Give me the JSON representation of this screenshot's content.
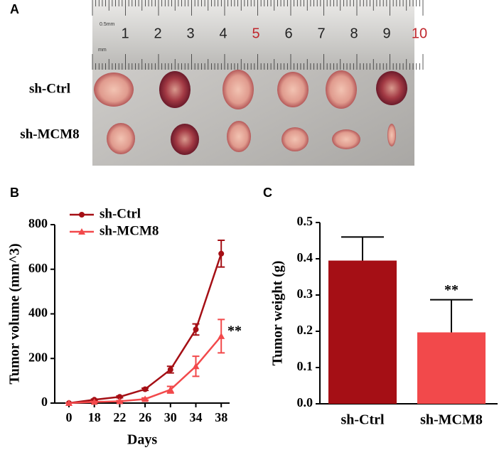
{
  "photo": {
    "label": "A",
    "rows": [
      "sh-Ctrl",
      "sh-MCM8"
    ],
    "ruler": [
      1,
      2,
      3,
      4,
      5,
      6,
      7,
      8,
      9,
      10
    ],
    "ruler_notes": [
      "0.5mm",
      "mm"
    ]
  },
  "chart_data": [
    {
      "type": "line",
      "panel": "B",
      "x_label": "Days",
      "y_label": "Tumor volume (mm^3)",
      "categories": [
        "0",
        "18",
        "22",
        "26",
        "30",
        "34",
        "38"
      ],
      "series": [
        {
          "name": "sh-Ctrl",
          "color": "#a50f15",
          "marker": "circle",
          "values": [
            0,
            15,
            28,
            62,
            150,
            330,
            670
          ],
          "errors": [
            0,
            3,
            4,
            5,
            15,
            25,
            60
          ]
        },
        {
          "name": "sh-MCM8",
          "color": "#f2494b",
          "marker": "triangle",
          "values": [
            0,
            5,
            8,
            18,
            60,
            165,
            300
          ],
          "errors": [
            0,
            2,
            3,
            5,
            15,
            45,
            75
          ]
        }
      ],
      "ylim": [
        0,
        800
      ],
      "yticks": [
        0,
        200,
        400,
        600,
        800
      ],
      "annotation": "**"
    },
    {
      "type": "bar",
      "panel": "C",
      "y_label": "Tumor weight (g)",
      "categories": [
        "sh-Ctrl",
        "sh-MCM8"
      ],
      "values": [
        0.395,
        0.197
      ],
      "errors": [
        0.065,
        0.09
      ],
      "colors": [
        "#a50f15",
        "#f2494b"
      ],
      "ylim": [
        0,
        0.5
      ],
      "yticks": [
        {
          "value": 0,
          "label": "0.0"
        },
        0.1,
        0.2,
        0.3,
        0.4,
        0.5
      ],
      "annotation": "**"
    }
  ]
}
